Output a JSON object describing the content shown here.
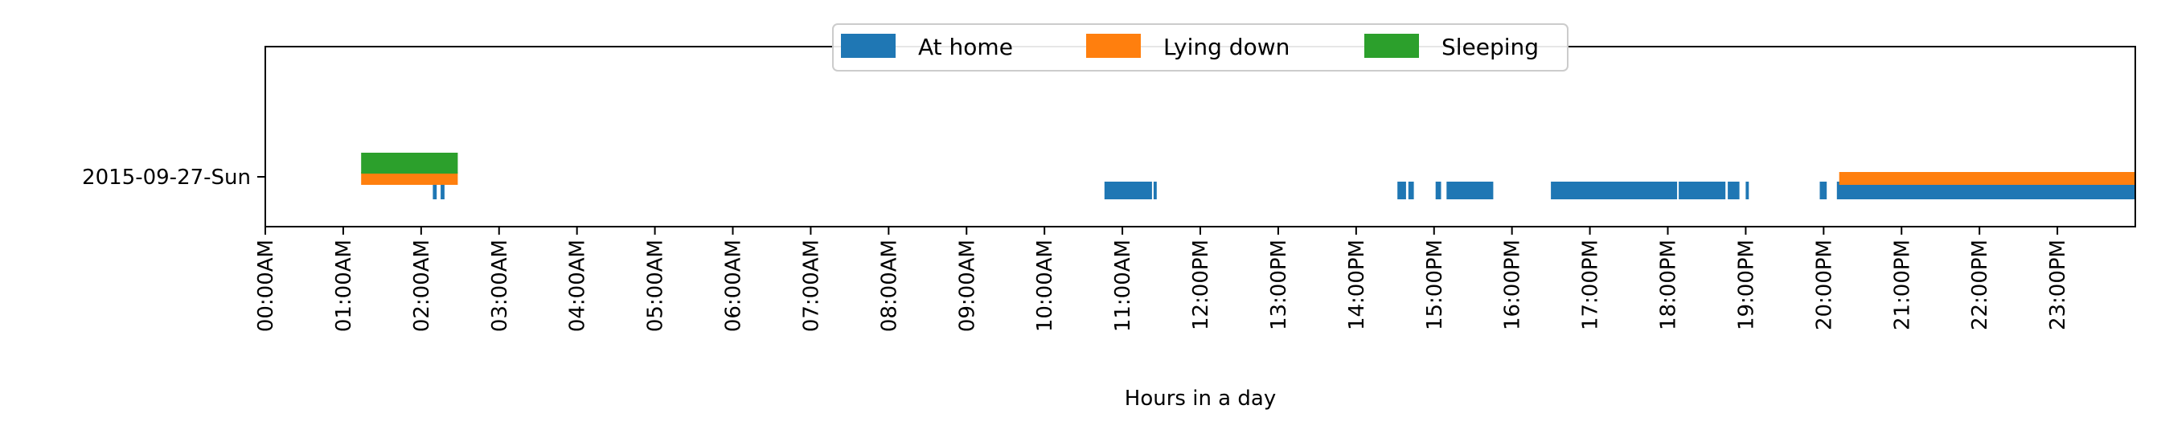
{
  "chart_data": {
    "type": "timeline",
    "xlabel": "Hours in a day",
    "ylabel": "",
    "xlim": [
      0,
      24
    ],
    "x_ticks": [
      {
        "value": 0,
        "label": "00:00AM"
      },
      {
        "value": 1,
        "label": "01:00AM"
      },
      {
        "value": 2,
        "label": "02:00AM"
      },
      {
        "value": 3,
        "label": "03:00AM"
      },
      {
        "value": 4,
        "label": "04:00AM"
      },
      {
        "value": 5,
        "label": "05:00AM"
      },
      {
        "value": 6,
        "label": "06:00AM"
      },
      {
        "value": 7,
        "label": "07:00AM"
      },
      {
        "value": 8,
        "label": "08:00AM"
      },
      {
        "value": 9,
        "label": "09:00AM"
      },
      {
        "value": 10,
        "label": "10:00AM"
      },
      {
        "value": 11,
        "label": "11:00AM"
      },
      {
        "value": 12,
        "label": "12:00PM"
      },
      {
        "value": 13,
        "label": "13:00PM"
      },
      {
        "value": 14,
        "label": "14:00PM"
      },
      {
        "value": 15,
        "label": "15:00PM"
      },
      {
        "value": 16,
        "label": "16:00PM"
      },
      {
        "value": 17,
        "label": "17:00PM"
      },
      {
        "value": 18,
        "label": "18:00PM"
      },
      {
        "value": 19,
        "label": "19:00PM"
      },
      {
        "value": 20,
        "label": "20:00PM"
      },
      {
        "value": 21,
        "label": "21:00PM"
      },
      {
        "value": 22,
        "label": "22:00PM"
      },
      {
        "value": 23,
        "label": "23:00PM"
      }
    ],
    "categories": [
      "2015-09-27-Sun"
    ],
    "legend_position": "upper-center",
    "grid": false,
    "series": [
      {
        "name": "At home",
        "color": "#1f77b4",
        "day": "2015-09-27-Sun",
        "intervals": [
          [
            2.15,
            2.2
          ],
          [
            2.25,
            2.3
          ],
          [
            10.77,
            11.38
          ],
          [
            11.4,
            11.44
          ],
          [
            14.53,
            14.64
          ],
          [
            14.67,
            14.74
          ],
          [
            15.02,
            15.09
          ],
          [
            15.16,
            15.76
          ],
          [
            16.5,
            18.12
          ],
          [
            18.14,
            18.74
          ],
          [
            18.77,
            18.92
          ],
          [
            19.0,
            19.04
          ],
          [
            19.95,
            20.04
          ],
          [
            20.17,
            24.0
          ]
        ]
      },
      {
        "name": "Lying down",
        "color": "#ff7f0e",
        "day": "2015-09-27-Sun",
        "intervals": [
          [
            1.23,
            2.47
          ],
          [
            20.2,
            24.0
          ]
        ]
      },
      {
        "name": "Sleeping",
        "color": "#2ca02c",
        "day": "2015-09-27-Sun",
        "intervals": [
          [
            1.23,
            2.47
          ]
        ]
      }
    ]
  }
}
